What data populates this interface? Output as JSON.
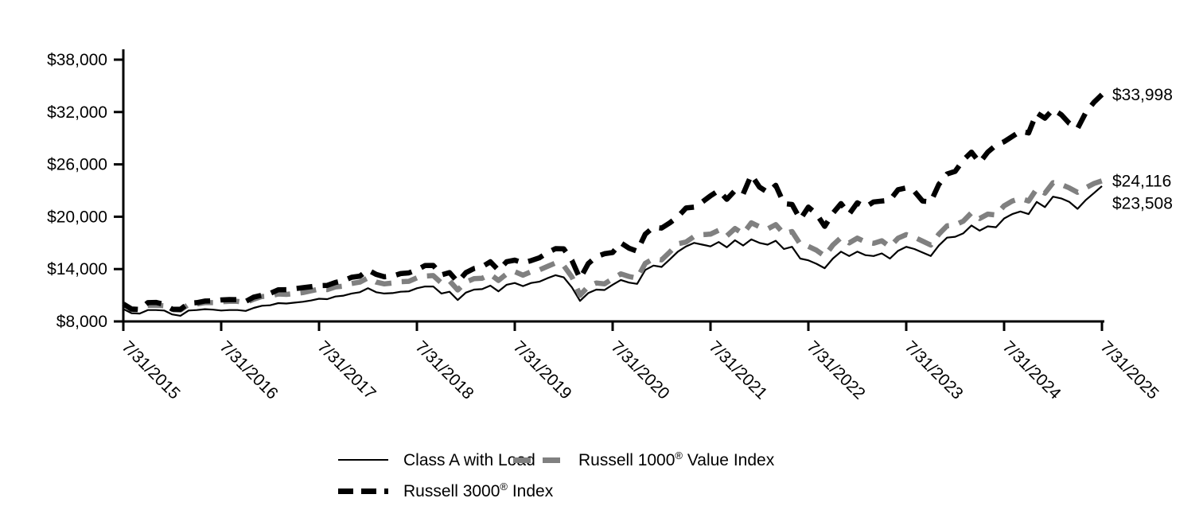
{
  "chart_data": {
    "type": "line",
    "title": "",
    "x_axis": {
      "tick_labels": [
        "7/31/2015",
        "7/31/2016",
        "7/31/2017",
        "7/31/2018",
        "7/31/2019",
        "7/31/2020",
        "7/31/2021",
        "7/31/2022",
        "7/31/2023",
        "7/31/2024",
        "7/31/2025"
      ],
      "unit": "monthly"
    },
    "y_axis": {
      "ticks": [
        {
          "label": "$38,000",
          "value": 38000
        },
        {
          "label": "$32,000",
          "value": 32000
        },
        {
          "label": "$26,000",
          "value": 26000
        },
        {
          "label": "$20,000",
          "value": 20000
        },
        {
          "label": "$14,000",
          "value": 14000
        },
        {
          "label": "$8,000",
          "value": 8000
        }
      ],
      "min": 8000,
      "max": 38000
    },
    "grid": false,
    "legend_position": "bottom",
    "series": [
      {
        "id": "class-a-with-load-line",
        "name": "Class A with Load",
        "color": "#000000",
        "style": "solid",
        "end_label": "$23,508",
        "values": [
          9425,
          8950,
          8900,
          9300,
          9300,
          9250,
          8800,
          8650,
          9250,
          9300,
          9400,
          9350,
          9250,
          9300,
          9300,
          9200,
          9550,
          9800,
          9850,
          10100,
          10050,
          10150,
          10250,
          10400,
          10600,
          10550,
          10850,
          10950,
          11200,
          11350,
          11800,
          11350,
          11200,
          11250,
          11400,
          11450,
          11800,
          12000,
          12000,
          11200,
          11400,
          10450,
          11300,
          11650,
          11700,
          12100,
          11450,
          12200,
          12400,
          12050,
          12400,
          12550,
          12950,
          13300,
          13050,
          11900,
          10350,
          11250,
          11650,
          11600,
          12200,
          12750,
          12450,
          12300,
          13900,
          14400,
          14250,
          15100,
          16000,
          16600,
          17000,
          16800,
          16600,
          17100,
          16500,
          17300,
          16700,
          17400,
          17000,
          16800,
          17250,
          16300,
          16550,
          15200,
          15000,
          14600,
          14100,
          15200,
          16000,
          15500,
          16000,
          15600,
          15500,
          15800,
          15200,
          16100,
          16550,
          16300,
          15900,
          15500,
          16700,
          17600,
          17700,
          18100,
          19000,
          18400,
          18900,
          18800,
          19800,
          20300,
          20600,
          20300,
          21700,
          21100,
          22300,
          22100,
          21700,
          20900,
          21900,
          22700,
          23508
        ]
      },
      {
        "id": "russell-1000-value-line",
        "name": "Russell 1000® Value Index",
        "color": "#808080",
        "style": "dashed",
        "end_label": "$24,116",
        "values": [
          10000,
          9450,
          9400,
          9850,
          9850,
          9800,
          9350,
          9300,
          9950,
          10000,
          10150,
          10150,
          10250,
          10300,
          10300,
          10150,
          10550,
          10850,
          10900,
          11150,
          11100,
          11200,
          11300,
          11500,
          11700,
          11650,
          11950,
          12050,
          12350,
          12500,
          13000,
          12500,
          12300,
          12400,
          12550,
          12600,
          13000,
          13200,
          13250,
          12400,
          12650,
          11600,
          12500,
          12900,
          12950,
          13400,
          12700,
          13450,
          13700,
          13300,
          13700,
          13900,
          14300,
          14700,
          14400,
          13100,
          11000,
          12000,
          12400,
          12300,
          12900,
          13450,
          13150,
          12950,
          14650,
          15200,
          15050,
          15950,
          16900,
          17100,
          17750,
          17950,
          18000,
          18450,
          17800,
          18650,
          18050,
          19300,
          18850,
          18600,
          19100,
          18050,
          18300,
          16850,
          16600,
          16150,
          15500,
          16750,
          17600,
          17000,
          17550,
          17100,
          16950,
          17250,
          16550,
          17550,
          17950,
          17650,
          17200,
          16750,
          18000,
          18950,
          19050,
          19500,
          20450,
          19800,
          20300,
          20200,
          21250,
          21800,
          22100,
          21800,
          23200,
          22700,
          23900,
          23700,
          23300,
          22800,
          23300,
          23800,
          24116
        ]
      },
      {
        "id": "russell-3000-line",
        "name": "Russell 3000® Index",
        "color": "#000000",
        "style": "dashed",
        "end_label": "$33,998",
        "values": [
          10000,
          9400,
          9350,
          10150,
          10180,
          9960,
          9400,
          9390,
          10090,
          10150,
          10330,
          10350,
          10460,
          10510,
          10490,
          10290,
          10790,
          11000,
          11210,
          11630,
          11640,
          11750,
          11870,
          11980,
          12100,
          12130,
          12460,
          12680,
          13060,
          13190,
          13900,
          13390,
          13120,
          13190,
          13480,
          13560,
          13910,
          14400,
          14420,
          13330,
          13600,
          12520,
          13590,
          14060,
          14260,
          14840,
          13870,
          14850,
          15020,
          14720,
          14970,
          15290,
          15880,
          16340,
          16320,
          14990,
          12900,
          14620,
          15410,
          15760,
          15900,
          17000,
          16400,
          16050,
          18000,
          18800,
          18700,
          19300,
          20000,
          21000,
          21100,
          21700,
          22400,
          23000,
          22000,
          23000,
          22600,
          24800,
          23400,
          22800,
          23600,
          21500,
          21400,
          19700,
          21100,
          20300,
          18900,
          20400,
          21500,
          20300,
          21600,
          21100,
          21700,
          21800,
          21900,
          23100,
          23300,
          22900,
          21800,
          21700,
          23700,
          24900,
          25200,
          26500,
          27400,
          26200,
          27400,
          28200,
          28600,
          29200,
          29800,
          29600,
          31900,
          31300,
          32300,
          31700,
          30700,
          30100,
          31900,
          33100,
          33998
        ]
      }
    ]
  },
  "legend": {
    "items": [
      {
        "pre": "Class A with Load",
        "sup": "",
        "post": ""
      },
      {
        "pre": "Russell 1000",
        "sup": "®",
        "post": " Value Index"
      },
      {
        "pre": "Russell 3000",
        "sup": "®",
        "post": " Index"
      }
    ]
  },
  "colors": {
    "axis": "#000000",
    "class_a": "#000000",
    "russell_1000_value": "#808080",
    "russell_3000": "#000000",
    "background": "#ffffff"
  }
}
